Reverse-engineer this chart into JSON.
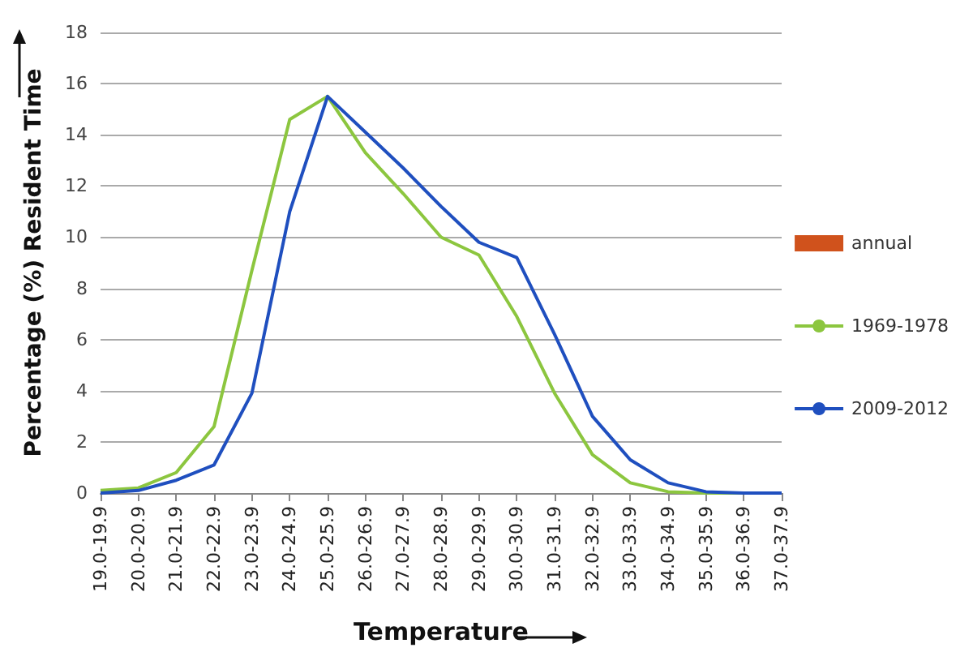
{
  "chart_data": {
    "type": "line",
    "xlabel": "Temperature",
    "ylabel": "Percentage (%) Resident Time",
    "categories": [
      "19.0-19.9",
      "20.0-20.9",
      "21.0-21.9",
      "22.0-22.9",
      "23.0-23.9",
      "24.0-24.9",
      "25.0-25.9",
      "26.0-26.9",
      "27.0-27.9",
      "28.0-28.9",
      "29.0-29.9",
      "30.0-30.9",
      "31.0-31.9",
      "32.0-32.9",
      "33.0-33.9",
      "34.0-34.9",
      "35.0-35.9",
      "36.0-36.9",
      "37.0-37.9"
    ],
    "series": [
      {
        "name": "annual",
        "type": "bar",
        "color": "#d0521c",
        "values": [
          null,
          null,
          null,
          null,
          null,
          null,
          null,
          null,
          null,
          null,
          null,
          null,
          null,
          null,
          null,
          null,
          null,
          null,
          null
        ]
      },
      {
        "name": "1969-1978",
        "color": "#8cc63f",
        "values": [
          0.1,
          0.2,
          0.8,
          2.6,
          8.7,
          14.6,
          15.5,
          13.3,
          11.7,
          10.0,
          9.3,
          6.9,
          3.9,
          1.5,
          0.4,
          0.05,
          0,
          0,
          0
        ]
      },
      {
        "name": "2009-2012",
        "color": "#1f4fbf",
        "values": [
          0,
          0.1,
          0.5,
          1.1,
          3.9,
          11.0,
          15.5,
          14.1,
          12.7,
          11.2,
          9.8,
          9.2,
          6.2,
          3.0,
          1.3,
          0.4,
          0.05,
          0,
          0
        ]
      }
    ],
    "ylim": [
      0,
      18
    ],
    "yticks": [
      0,
      2,
      4,
      6,
      8,
      10,
      12,
      14,
      16,
      18
    ],
    "grid": "y",
    "legend": "right",
    "marker": "none"
  }
}
